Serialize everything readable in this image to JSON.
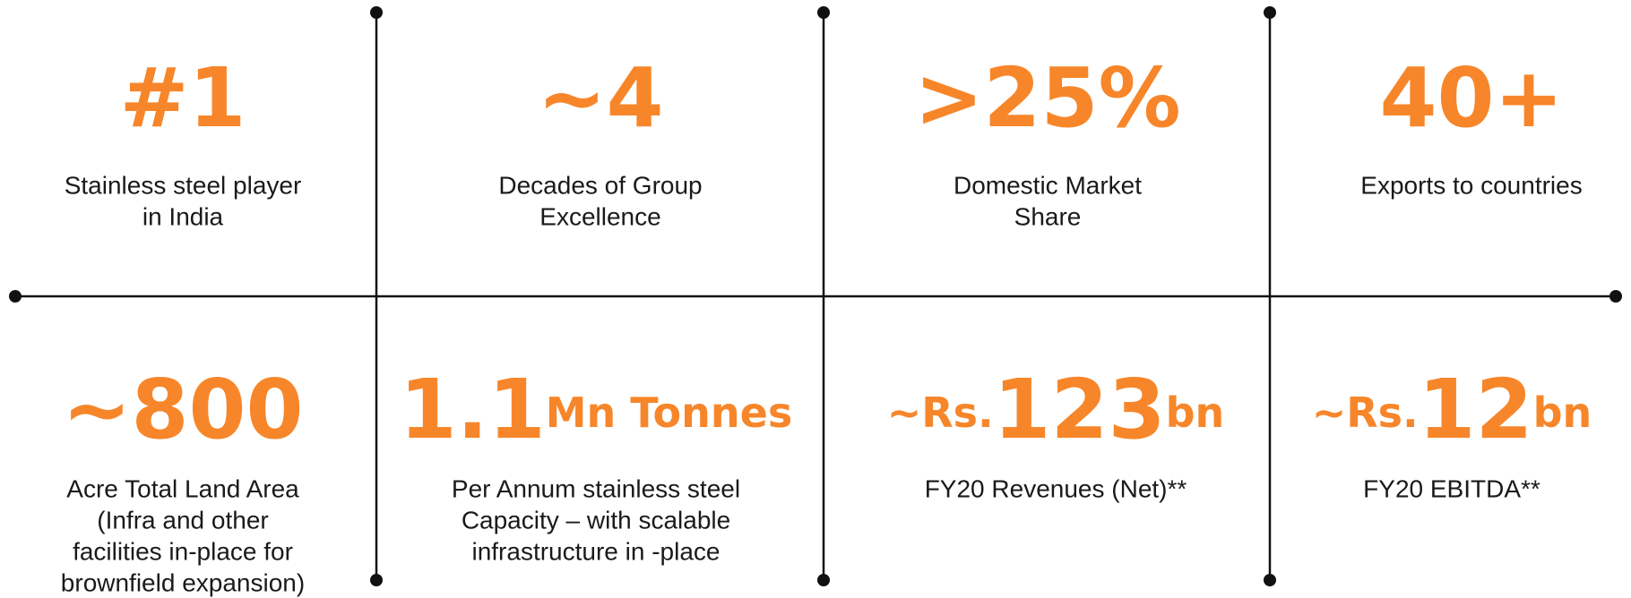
{
  "cells": [
    {
      "big": [
        {
          "text": "#1",
          "size": "large"
        }
      ],
      "lines": [
        "Stainless steel player",
        "in India"
      ]
    },
    {
      "big": [
        {
          "text": "~4",
          "size": "large"
        }
      ],
      "lines": [
        "Decades of Group",
        "Excellence"
      ]
    },
    {
      "big": [
        {
          "text": ">25%",
          "size": "large"
        }
      ],
      "lines": [
        "Domestic Market",
        "Share"
      ]
    },
    {
      "big": [
        {
          "text": "40+",
          "size": "large"
        }
      ],
      "lines": [
        "Exports to countries"
      ]
    },
    {
      "big": [
        {
          "text": "~800",
          "size": "large"
        }
      ],
      "lines": [
        "Acre Total Land Area",
        "(Infra and other",
        "facilities in-place for",
        "brownfield expansion)"
      ]
    },
    {
      "big": [
        {
          "text": "1.1",
          "size": "large"
        },
        {
          "text": "Mn Tonnes",
          "size": "small"
        }
      ],
      "lines": [
        "Per Annum stainless steel",
        "Capacity – with scalable",
        "infrastructure in -place"
      ]
    },
    {
      "big": [
        {
          "text": "~Rs.",
          "size": "small"
        },
        {
          "text": "123",
          "size": "large"
        },
        {
          "text": "bn",
          "size": "small"
        }
      ],
      "lines": [
        "FY20 Revenues (Net)**"
      ]
    },
    {
      "big": [
        {
          "text": "~Rs.",
          "size": "small"
        },
        {
          "text": "12",
          "size": "large"
        },
        {
          "text": "bn",
          "size": "small"
        }
      ],
      "lines": [
        "FY20 EBITDA**"
      ]
    }
  ]
}
